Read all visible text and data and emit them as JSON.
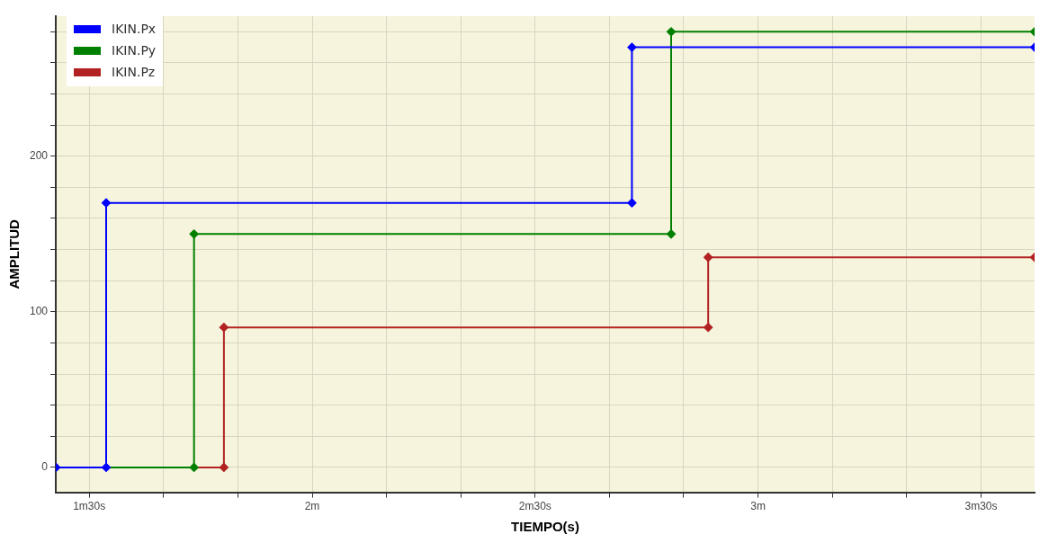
{
  "chart_data": {
    "type": "step",
    "xlabel": "TIEMPO(s)",
    "ylabel": "AMPLITUD",
    "xlim": [
      1.425,
      3.62
    ],
    "ylim": [
      -16,
      290
    ],
    "xticks": [
      {
        "value": 1.5,
        "label": "1m30s"
      },
      {
        "value": 1.667,
        "label": null
      },
      {
        "value": 1.833,
        "label": null
      },
      {
        "value": 2,
        "label": "2m"
      },
      {
        "value": 2.167,
        "label": null
      },
      {
        "value": 2.333,
        "label": null
      },
      {
        "value": 2.5,
        "label": "2m30s"
      },
      {
        "value": 2.667,
        "label": null
      },
      {
        "value": 2.833,
        "label": null
      },
      {
        "value": 3,
        "label": "3m"
      },
      {
        "value": 3.167,
        "label": null
      },
      {
        "value": 3.333,
        "label": null
      },
      {
        "value": 3.5,
        "label": "3m30s"
      }
    ],
    "yticks": [
      0,
      {
        "value": 20,
        "label": null
      },
      {
        "value": 40,
        "label": null
      },
      {
        "value": 60,
        "label": null
      },
      {
        "value": 80,
        "label": null
      },
      100,
      {
        "value": 120,
        "label": null
      },
      {
        "value": 140,
        "label": null
      },
      {
        "value": 160,
        "label": null
      },
      {
        "value": 180,
        "label": null
      },
      200,
      {
        "value": 220,
        "label": null
      },
      {
        "value": 240,
        "label": null
      },
      {
        "value": 260,
        "label": null
      },
      {
        "value": 280,
        "label": null
      }
    ],
    "grid": true,
    "legend": "top left",
    "marker": "diamond",
    "series": [
      {
        "name": "IKIN.Px",
        "color": "#0000ff",
        "x": [
          1.425,
          1.538,
          1.538,
          2.717,
          2.717,
          3.62
        ],
        "values": [
          0,
          0,
          170,
          170,
          270,
          270
        ]
      },
      {
        "name": "IKIN.Py",
        "color": "#008000",
        "x": [
          1.425,
          1.735,
          1.735,
          2.805,
          2.805,
          3.62
        ],
        "values": [
          0,
          0,
          150,
          150,
          280,
          280
        ]
      },
      {
        "name": "IKIN.Pz",
        "color": "#b22222",
        "x": [
          1.425,
          1.802,
          1.802,
          2.888,
          2.888,
          3.62
        ],
        "values": [
          0,
          0,
          90,
          90,
          135,
          135
        ]
      }
    ]
  }
}
